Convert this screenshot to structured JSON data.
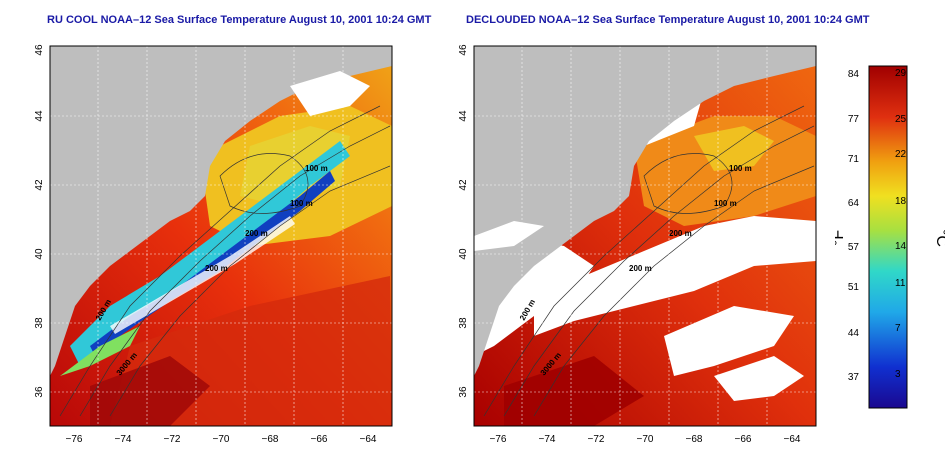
{
  "left_panel": {
    "title": "RU COOL NOAA–12 Sea Surface Temperature August 10, 2001 10:24 GMT",
    "contour_labels": [
      "100 m",
      "100 m",
      "200 m",
      "200 m",
      "200 m",
      "3000 m"
    ]
  },
  "right_panel": {
    "title": "DECLOUDED NOAA–12 Sea Surface Temperature August 10, 2001 10:24 GMT",
    "contour_labels": [
      "100 m",
      "100 m",
      "200 m",
      "200 m",
      "200 m",
      "3000 m"
    ]
  },
  "axes": {
    "x_ticks": [
      "−76",
      "−74",
      "−72",
      "−70",
      "−68",
      "−66",
      "−64"
    ],
    "y_ticks": [
      "36",
      "38",
      "40",
      "42",
      "44",
      "46"
    ]
  },
  "colorbar": {
    "fahrenheit_label": "°F",
    "celsius_label": "°C",
    "fahrenheit_ticks": [
      "84",
      "77",
      "71",
      "64",
      "57",
      "51",
      "44",
      "37"
    ],
    "celsius_ticks": [
      "29",
      "25",
      "22",
      "18",
      "14",
      "11",
      "7",
      "3"
    ]
  },
  "colors": {
    "title": "#1a1aa6",
    "land": "#bebebe",
    "cloud": "#ffffff",
    "warm": "#e02a10",
    "hot": "#b00000",
    "orange": "#f07a10",
    "yellow": "#f0c020",
    "cool": "#20c0e0",
    "cold": "#1030c0"
  }
}
